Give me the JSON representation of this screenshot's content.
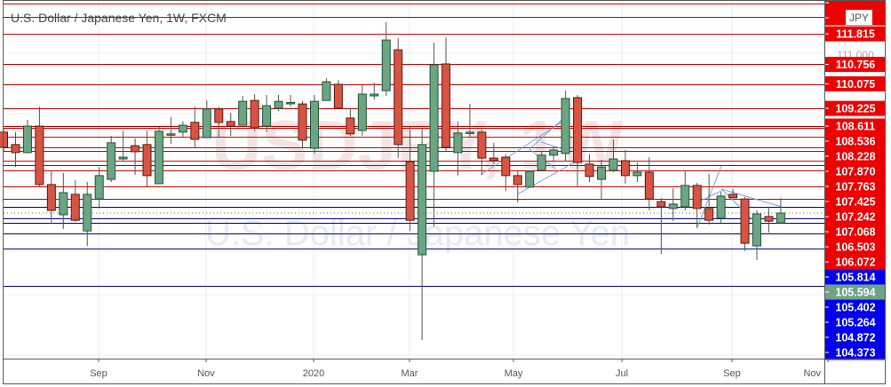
{
  "header": {
    "title": "U.S. Dollar / Japanese Yen, 1W, FXCM",
    "currency_badge": "JPY"
  },
  "watermark": {
    "symbol": "USDJPY, 1W",
    "name": "U.S. Dollar / Japanese Yen"
  },
  "colors": {
    "up": "#6ba583",
    "down": "#d75442",
    "up_border": "#225437",
    "down_border": "#5b1a13",
    "resistance_line": "#cc0000",
    "support_line": "#000080",
    "last_price": "#6ba583",
    "trendline": "#7b9fd6"
  },
  "chart_data": {
    "type": "candlestick",
    "title": "U.S. Dollar / Japanese Yen, 1W, FXCM",
    "symbol": "USDJPY",
    "interval": "1W",
    "ylim": [
      99.9,
      113.0
    ],
    "grid": true,
    "x_tick_labels": [
      "Sep",
      "Nov",
      "2020",
      "Mar",
      "May",
      "Jul",
      "Sep",
      "Nov"
    ],
    "y_grid_label": "111.000",
    "last_price": "105.594",
    "ohlc": [
      [
        108.4,
        108.52,
        107.75,
        107.87
      ],
      [
        107.97,
        108.4,
        107.19,
        107.69
      ],
      [
        107.69,
        108.83,
        107.66,
        108.61
      ],
      [
        108.61,
        109.29,
        106.52,
        106.58
      ],
      [
        106.58,
        107.07,
        105.22,
        105.68
      ],
      [
        105.53,
        106.98,
        105.04,
        106.3
      ],
      [
        106.24,
        106.73,
        105.28,
        105.34
      ],
      [
        104.97,
        106.67,
        104.45,
        106.24
      ],
      [
        106.08,
        107.19,
        105.75,
        106.89
      ],
      [
        106.76,
        108.27,
        106.67,
        108.03
      ],
      [
        107.47,
        108.46,
        107.38,
        107.53
      ],
      [
        107.93,
        108.18,
        106.92,
        107.72
      ],
      [
        107.97,
        108.46,
        106.52,
        106.89
      ],
      [
        106.61,
        108.58,
        106.61,
        108.43
      ],
      [
        108.3,
        108.92,
        107.99,
        108.34
      ],
      [
        108.4,
        108.77,
        108.21,
        108.64
      ],
      [
        108.74,
        109.29,
        107.87,
        108.15
      ],
      [
        108.21,
        109.5,
        108.21,
        109.2
      ],
      [
        109.2,
        109.29,
        108.21,
        108.74
      ],
      [
        108.77,
        109.07,
        108.27,
        108.61
      ],
      [
        108.64,
        109.66,
        108.64,
        109.47
      ],
      [
        109.5,
        109.72,
        108.43,
        108.55
      ],
      [
        108.61,
        109.69,
        108.4,
        109.32
      ],
      [
        109.23,
        109.69,
        109.13,
        109.47
      ],
      [
        109.41,
        109.69,
        109.29,
        109.43
      ],
      [
        109.38,
        109.47,
        107.84,
        108.12
      ],
      [
        107.84,
        109.69,
        107.66,
        109.47
      ],
      [
        109.5,
        110.27,
        109.5,
        110.15
      ],
      [
        110.06,
        110.21,
        109.2,
        109.23
      ],
      [
        108.89,
        109.23,
        108.27,
        108.34
      ],
      [
        108.46,
        110.03,
        108.27,
        109.72
      ],
      [
        109.66,
        110.12,
        109.53,
        109.72
      ],
      [
        109.84,
        112.22,
        109.66,
        111.6
      ],
      [
        111.26,
        111.66,
        107.5,
        107.97
      ],
      [
        107.38,
        108.58,
        104.97,
        105.34
      ],
      [
        104.14,
        108.52,
        101.18,
        107.97
      ],
      [
        107.04,
        111.51,
        105.13,
        110.74
      ],
      [
        110.77,
        111.69,
        107.75,
        107.87
      ],
      [
        107.69,
        108.77,
        106.89,
        108.37
      ],
      [
        108.37,
        109.38,
        108.21,
        108.4
      ],
      [
        108.4,
        108.49,
        106.92,
        107.5
      ],
      [
        107.5,
        108.03,
        107.29,
        107.41
      ],
      [
        107.53,
        107.63,
        106.36,
        106.89
      ],
      [
        106.89,
        107.07,
        105.96,
        106.58
      ],
      [
        106.49,
        107.04,
        106.49,
        107.04
      ],
      [
        107.07,
        107.75,
        107.07,
        107.6
      ],
      [
        107.6,
        107.9,
        107.41,
        107.78
      ],
      [
        107.66,
        109.84,
        107.38,
        109.57
      ],
      [
        109.6,
        109.69,
        106.52,
        107.35
      ],
      [
        107.29,
        107.63,
        106.67,
        106.86
      ],
      [
        106.76,
        107.44,
        106.08,
        107.19
      ],
      [
        107.07,
        108.15,
        107.01,
        107.47
      ],
      [
        107.41,
        107.78,
        106.61,
        106.89
      ],
      [
        106.89,
        107.35,
        106.67,
        107.01
      ],
      [
        107.01,
        107.53,
        105.68,
        106.08
      ],
      [
        105.99,
        106.12,
        104.17,
        105.81
      ],
      [
        105.75,
        106.45,
        105.31,
        105.9
      ],
      [
        105.81,
        107.07,
        105.68,
        106.55
      ],
      [
        106.55,
        106.64,
        105.07,
        105.75
      ],
      [
        105.75,
        106.95,
        105.19,
        105.34
      ],
      [
        105.41,
        106.33,
        105.25,
        106.18
      ],
      [
        106.24,
        106.42,
        106.12,
        106.12
      ],
      [
        106.08,
        106.15,
        104.27,
        104.54
      ],
      [
        104.45,
        105.68,
        103.96,
        105.56
      ],
      [
        105.47,
        105.81,
        104.91,
        105.31
      ],
      [
        105.25,
        106.12,
        105.25,
        105.59
      ]
    ],
    "horizontal_levels": [
      {
        "price": 112.86,
        "label": null,
        "kind": "resistance"
      },
      {
        "price": 112.4,
        "label": null,
        "kind": "resistance"
      },
      {
        "price": 111.815,
        "label": "111.815",
        "kind": "resistance"
      },
      {
        "price": 110.756,
        "label": "110.756",
        "kind": "resistance"
      },
      {
        "price": 110.075,
        "label": "110.075",
        "kind": "resistance"
      },
      {
        "price": 109.225,
        "label": "109.225",
        "kind": "resistance"
      },
      {
        "price": 108.611,
        "label": "108.611",
        "kind": "resistance"
      },
      {
        "price": 108.536,
        "label": "108.536",
        "kind": "resistance"
      },
      {
        "price": 108.228,
        "label": "108.228",
        "kind": "resistance"
      },
      {
        "price": 107.87,
        "label": "107.870",
        "kind": "resistance"
      },
      {
        "price": 107.763,
        "label": "107.763",
        "kind": "resistance"
      },
      {
        "price": 107.425,
        "label": "107.425",
        "kind": "resistance"
      },
      {
        "price": 107.242,
        "label": "107.242",
        "kind": "resistance"
      },
      {
        "price": 107.068,
        "label": "107.068",
        "kind": "resistance"
      },
      {
        "price": 106.503,
        "label": "106.503",
        "kind": "resistance"
      },
      {
        "price": 106.072,
        "label": "106.072",
        "kind": "resistance"
      },
      {
        "price": 105.814,
        "label": "105.814",
        "kind": "support"
      },
      {
        "price": 105.594,
        "label": "105.594",
        "kind": "last"
      },
      {
        "price": 105.402,
        "label": "105.402",
        "kind": "support"
      },
      {
        "price": 105.264,
        "label": "105.264",
        "kind": "support"
      },
      {
        "price": 104.872,
        "label": "104.872",
        "kind": "support"
      },
      {
        "price": 104.373,
        "label": "104.373",
        "kind": "support"
      },
      {
        "price": 103.06,
        "label": null,
        "kind": "support"
      }
    ]
  }
}
